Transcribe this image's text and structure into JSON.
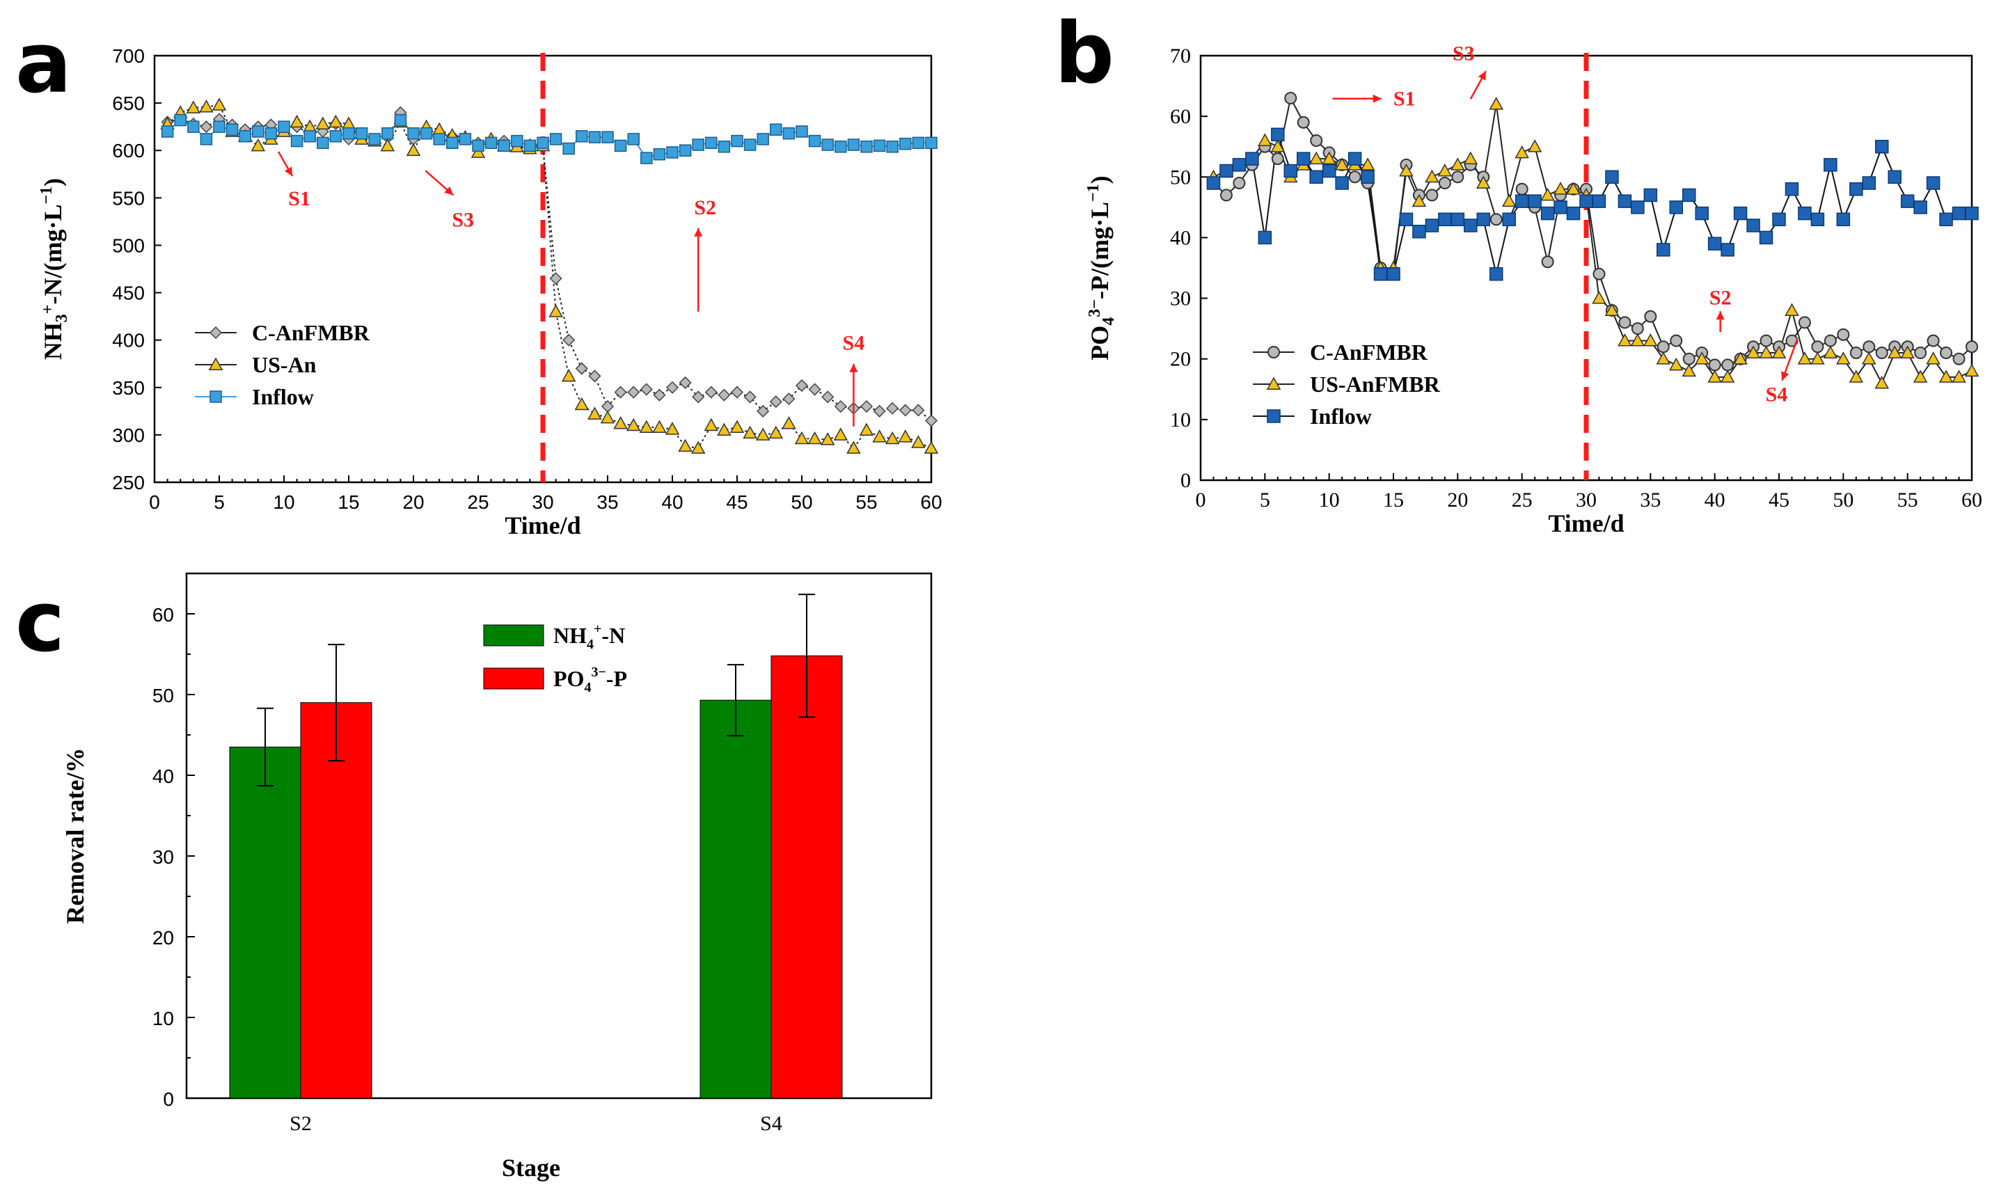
{
  "colors": {
    "red": "#ff1a1a",
    "blueA": "#3aa0dc",
    "blueB": "#1f64b4",
    "yellow": "#f2c21a",
    "gray": "#b9b9b9",
    "green": "#008000",
    "barRed": "#ff0000"
  },
  "panels": {
    "a": "a",
    "b": "b",
    "c": "c"
  },
  "chart_data": [
    {
      "id": "a",
      "type": "line",
      "title": "",
      "xlabel": "Time/d",
      "ylabel": "NH3+-N/(mg·L−1)",
      "ylabel_parts": {
        "base": "NH",
        "sub": "3",
        "sup": "+",
        "rest": "-N/(mg·L",
        "unit_sup": "−1",
        "close": ")"
      },
      "xlim": [
        0,
        60
      ],
      "ylim": [
        250,
        700
      ],
      "xticks": [
        "0",
        "5",
        "10",
        "15",
        "20",
        "25",
        "30",
        "35",
        "40",
        "45",
        "50",
        "55",
        "60"
      ],
      "yticks": [
        "250",
        "300",
        "350",
        "400",
        "450",
        "500",
        "550",
        "600",
        "650",
        "700"
      ],
      "divider_x": 30,
      "annotations": [
        {
          "label": "S1",
          "x": 10,
          "y": 595
        },
        {
          "label": "S3",
          "x": 22,
          "y": 575
        },
        {
          "label": "S2",
          "x": 42,
          "y": 430
        },
        {
          "label": "S4",
          "x": 54,
          "y": 375
        }
      ],
      "series": [
        {
          "name": "C-AnFMBR",
          "marker": "diamond",
          "x": [
            1,
            2,
            3,
            4,
            5,
            6,
            7,
            8,
            9,
            10,
            11,
            12,
            13,
            14,
            15,
            16,
            17,
            18,
            19,
            20,
            21,
            22,
            23,
            24,
            25,
            26,
            27,
            28,
            29,
            30,
            31,
            32,
            33,
            34,
            35,
            36,
            37,
            38,
            39,
            40,
            41,
            42,
            43,
            44,
            45,
            46,
            47,
            48,
            49,
            50,
            51,
            52,
            53,
            54,
            55,
            56,
            57,
            58,
            59,
            60
          ],
          "y": [
            630,
            633,
            628,
            625,
            633,
            627,
            622,
            625,
            627,
            622,
            625,
            618,
            620,
            628,
            612,
            615,
            612,
            614,
            640,
            612,
            622,
            618,
            615,
            612,
            608,
            610,
            610,
            605,
            606,
            605,
            465,
            400,
            370,
            362,
            330,
            345,
            345,
            348,
            342,
            350,
            355,
            340,
            345,
            342,
            345,
            340,
            325,
            335,
            338,
            352,
            348,
            340,
            330,
            328,
            330,
            325,
            328,
            326,
            326,
            315
          ]
        },
        {
          "name": "US-An",
          "marker": "triangle",
          "x": [
            1,
            2,
            3,
            4,
            5,
            6,
            7,
            8,
            9,
            10,
            11,
            12,
            13,
            14,
            15,
            16,
            17,
            18,
            19,
            20,
            21,
            22,
            23,
            24,
            25,
            26,
            27,
            28,
            29,
            30,
            31,
            32,
            33,
            34,
            35,
            36,
            37,
            38,
            39,
            40,
            41,
            42,
            43,
            44,
            45,
            46,
            47,
            48,
            49,
            50,
            51,
            52,
            53,
            54,
            55,
            56,
            57,
            58,
            59,
            60
          ],
          "y": [
            628,
            640,
            645,
            646,
            648,
            620,
            615,
            605,
            612,
            620,
            630,
            625,
            628,
            630,
            628,
            612,
            610,
            605,
            630,
            600,
            625,
            622,
            616,
            614,
            598,
            612,
            605,
            604,
            602,
            605,
            430,
            362,
            332,
            322,
            318,
            312,
            310,
            308,
            308,
            306,
            288,
            286,
            310,
            305,
            308,
            302,
            300,
            302,
            312,
            296,
            296,
            295,
            300,
            286,
            305,
            298,
            296,
            298,
            292,
            286
          ]
        },
        {
          "name": "Inflow",
          "marker": "square",
          "x": [
            1,
            2,
            3,
            4,
            5,
            6,
            7,
            8,
            9,
            10,
            11,
            12,
            13,
            14,
            15,
            16,
            17,
            18,
            19,
            20,
            21,
            22,
            23,
            24,
            25,
            26,
            27,
            28,
            29,
            30,
            31,
            32,
            33,
            34,
            35,
            36,
            37,
            38,
            39,
            40,
            41,
            42,
            43,
            44,
            45,
            46,
            47,
            48,
            49,
            50,
            51,
            52,
            53,
            54,
            55,
            56,
            57,
            58,
            59,
            60
          ],
          "y": [
            620,
            632,
            625,
            612,
            625,
            622,
            615,
            620,
            618,
            625,
            610,
            615,
            608,
            615,
            618,
            618,
            612,
            618,
            632,
            618,
            618,
            612,
            608,
            612,
            605,
            608,
            605,
            610,
            605,
            608,
            612,
            602,
            615,
            614,
            614,
            605,
            612,
            592,
            596,
            598,
            600,
            606,
            608,
            604,
            610,
            606,
            612,
            622,
            618,
            620,
            610,
            606,
            604,
            606,
            604,
            605,
            604,
            607,
            608,
            608
          ]
        }
      ],
      "legend": [
        {
          "label": "C-AnFMBR"
        },
        {
          "label": "US-An"
        },
        {
          "label": "Inflow"
        }
      ]
    },
    {
      "id": "b",
      "type": "line",
      "title": "",
      "xlabel": "Time/d",
      "ylabel": "PO43−-P/(mg·L−1)",
      "ylabel_parts": {
        "base": "PO",
        "sub": "4",
        "sup": "3−",
        "rest": "-P/(mg·L",
        "unit_sup": "−1",
        "close": ")"
      },
      "xlim": [
        0,
        60
      ],
      "ylim": [
        0,
        70
      ],
      "xticks": [
        "0",
        "5",
        "10",
        "15",
        "20",
        "25",
        "30",
        "35",
        "40",
        "45",
        "50",
        "55",
        "60"
      ],
      "yticks": [
        "0",
        "10",
        "20",
        "30",
        "40",
        "50",
        "60",
        "70"
      ],
      "divider_x": 30,
      "annotations": [
        {
          "label": "S1",
          "x": 10,
          "y": 62
        },
        {
          "label": "S3",
          "x": 21,
          "y": 64
        },
        {
          "label": "S2",
          "x": 40,
          "y": 29
        },
        {
          "label": "S4",
          "x": 46,
          "y": 13
        }
      ],
      "series": [
        {
          "name": "C-AnFMBR",
          "marker": "circle",
          "x": [
            1,
            2,
            3,
            4,
            5,
            6,
            7,
            8,
            9,
            10,
            11,
            12,
            13,
            14,
            15,
            16,
            17,
            18,
            19,
            20,
            21,
            22,
            23,
            24,
            25,
            26,
            27,
            28,
            29,
            30,
            31,
            32,
            33,
            34,
            35,
            36,
            37,
            38,
            39,
            40,
            41,
            42,
            43,
            44,
            45,
            46,
            47,
            48,
            49,
            50,
            51,
            52,
            53,
            54,
            55,
            56,
            57,
            58,
            59,
            60
          ],
          "y": [
            49,
            47,
            49,
            52,
            55,
            53,
            63,
            59,
            56,
            54,
            52,
            50,
            49,
            35,
            34,
            52,
            47,
            47,
            49,
            50,
            52,
            50,
            43,
            43,
            48,
            45,
            36,
            47,
            48,
            48,
            34,
            28,
            26,
            25,
            27,
            22,
            23,
            20,
            21,
            19,
            19,
            20,
            22,
            23,
            22,
            23,
            26,
            22,
            23,
            24,
            21,
            22,
            21,
            22,
            22,
            21,
            23,
            21,
            20,
            22
          ]
        },
        {
          "name": "US-AnFMBR",
          "marker": "triangle",
          "x": [
            1,
            2,
            3,
            4,
            5,
            6,
            7,
            8,
            9,
            10,
            11,
            12,
            13,
            14,
            15,
            16,
            17,
            18,
            19,
            20,
            21,
            22,
            23,
            24,
            25,
            26,
            27,
            28,
            29,
            30,
            31,
            32,
            33,
            34,
            35,
            36,
            37,
            38,
            39,
            40,
            41,
            42,
            43,
            44,
            45,
            46,
            47,
            48,
            49,
            50,
            51,
            52,
            53,
            54,
            55,
            56,
            57,
            58,
            59,
            60
          ],
          "y": [
            50,
            51,
            52,
            53,
            56,
            55,
            50,
            52,
            53,
            53,
            52,
            52,
            52,
            35,
            35,
            51,
            46,
            50,
            51,
            52,
            53,
            49,
            62,
            46,
            54,
            55,
            47,
            48,
            48,
            47,
            30,
            28,
            23,
            23,
            23,
            20,
            19,
            18,
            20,
            17,
            17,
            20,
            21,
            21,
            21,
            28,
            20,
            20,
            21,
            20,
            17,
            20,
            16,
            21,
            21,
            17,
            20,
            17,
            17,
            18
          ]
        },
        {
          "name": "Inflow",
          "marker": "square",
          "x": [
            1,
            2,
            3,
            4,
            5,
            6,
            7,
            8,
            9,
            10,
            11,
            12,
            13,
            14,
            15,
            16,
            17,
            18,
            19,
            20,
            21,
            22,
            23,
            24,
            25,
            26,
            27,
            28,
            29,
            30,
            31,
            32,
            33,
            34,
            35,
            36,
            37,
            38,
            39,
            40,
            41,
            42,
            43,
            44,
            45,
            46,
            47,
            48,
            49,
            50,
            51,
            52,
            53,
            54,
            55,
            56,
            57,
            58,
            59,
            60
          ],
          "y": [
            49,
            51,
            52,
            53,
            40,
            57,
            51,
            53,
            50,
            51,
            49,
            53,
            50,
            34,
            34,
            43,
            41,
            42,
            43,
            43,
            42,
            43,
            34,
            43,
            46,
            46,
            44,
            45,
            44,
            46,
            46,
            50,
            46,
            45,
            47,
            38,
            45,
            47,
            44,
            39,
            38,
            44,
            42,
            40,
            43,
            48,
            44,
            43,
            52,
            43,
            48,
            49,
            55,
            50,
            46,
            45,
            49,
            43,
            44,
            44
          ]
        }
      ],
      "legend": [
        {
          "label": "C-AnFMBR"
        },
        {
          "label": "US-AnFMBR"
        },
        {
          "label": "Inflow"
        }
      ]
    },
    {
      "id": "c",
      "type": "bar",
      "title": "",
      "xlabel": "Stage",
      "ylabel": "Removal rate/%",
      "categories": [
        "S2",
        "S4"
      ],
      "ylim": [
        0,
        65
      ],
      "yticks": [
        "0",
        "10",
        "20",
        "30",
        "40",
        "50",
        "60"
      ],
      "series": [
        {
          "name": "NH4+-N",
          "legend_parts": {
            "base": "NH",
            "sub": "4",
            "sup": "+",
            "rest": "-N"
          },
          "values": [
            43.5,
            49.3
          ],
          "errors": [
            4.8,
            4.4
          ]
        },
        {
          "name": "PO43−-P",
          "legend_parts": {
            "base": "PO",
            "sub": "4",
            "sup": "3−",
            "rest": "-P"
          },
          "values": [
            49.0,
            54.8
          ],
          "errors": [
            7.2,
            7.6
          ]
        }
      ]
    }
  ]
}
